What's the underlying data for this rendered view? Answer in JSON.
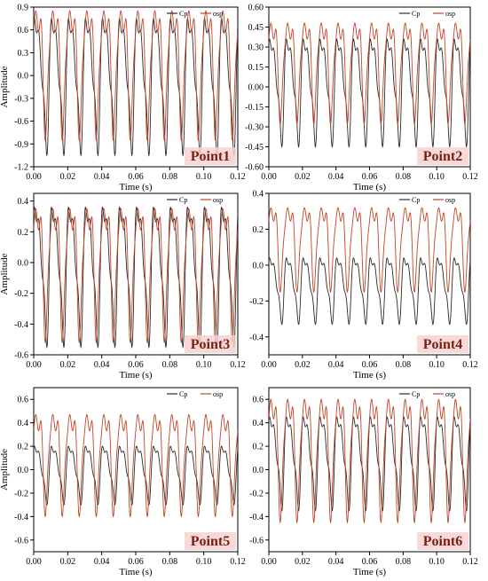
{
  "colors": {
    "cp": "#2b2b2b",
    "osp": "#c2452a",
    "point_label": "#7a1f10",
    "point_bg": "#f6d2d2"
  },
  "chart_data": [
    {
      "type": "line",
      "point_label": "Point1",
      "xlabel": "Time (s)",
      "ylabel": "Amplitude",
      "xlim": [
        0,
        0.12
      ],
      "ylim": [
        -1.2,
        0.9
      ],
      "xticks": [
        "0.00",
        "0.02",
        "0.04",
        "0.06",
        "0.08",
        "0.10",
        "0.12"
      ],
      "yticks": [
        "0.9",
        "0.6",
        "0.3",
        "0.0",
        "-0.3",
        "-0.6",
        "-0.9",
        "-1.2"
      ],
      "legend": [
        "Cp",
        "osp"
      ],
      "legend_position": "top-right",
      "period_s": 0.01,
      "cycles": 12,
      "series": [
        {
          "name": "Cp",
          "color": "#2b2b2b",
          "min": -1.05,
          "max": 0.75,
          "baseline": -0.1
        },
        {
          "name": "osp",
          "color": "#c2452a",
          "min": -0.85,
          "max": 0.85,
          "baseline": -0.55
        }
      ]
    },
    {
      "type": "line",
      "point_label": "Point2",
      "xlabel": "Time (s)",
      "ylabel": "",
      "xlim": [
        0,
        0.12
      ],
      "ylim": [
        -0.6,
        0.6
      ],
      "xticks": [
        "0.00",
        "0.02",
        "0.04",
        "0.06",
        "0.08",
        "0.10",
        "0.12"
      ],
      "yticks": [
        "0.60",
        "0.45",
        "0.30",
        "0.15",
        "0.00",
        "-0.15",
        "-0.30",
        "-0.45",
        "-0.60"
      ],
      "legend": [
        "Cp",
        "osp"
      ],
      "legend_position": "top-right",
      "period_s": 0.01,
      "cycles": 12,
      "series": [
        {
          "name": "Cp",
          "color": "#2b2b2b",
          "min": -0.45,
          "max": 0.36,
          "baseline": -0.07
        },
        {
          "name": "osp",
          "color": "#c2452a",
          "min": -0.28,
          "max": 0.48,
          "baseline": -0.05
        }
      ]
    },
    {
      "type": "line",
      "point_label": "Point3",
      "xlabel": "Time (s)",
      "ylabel": "Amplitude",
      "xlim": [
        0,
        0.12
      ],
      "ylim": [
        -0.6,
        0.45
      ],
      "xticks": [
        "0.00",
        "0.02",
        "0.04",
        "0.06",
        "0.08",
        "0.10",
        "0.12"
      ],
      "yticks": [
        "0.4",
        "0.2",
        "0.0",
        "-0.2",
        "-0.4",
        "-0.6"
      ],
      "legend": [
        "Cp",
        "osp"
      ],
      "legend_position": "top-right",
      "period_s": 0.01,
      "cycles": 12,
      "series": [
        {
          "name": "Cp",
          "color": "#2b2b2b",
          "min": -0.55,
          "max": 0.36,
          "baseline": -0.2
        },
        {
          "name": "osp",
          "color": "#c2452a",
          "min": -0.52,
          "max": 0.35,
          "baseline": -0.15
        }
      ]
    },
    {
      "type": "line",
      "point_label": "Point4",
      "xlabel": "Time (s)",
      "ylabel": "",
      "xlim": [
        0,
        0.12
      ],
      "ylim": [
        -0.5,
        0.4
      ],
      "xticks": [
        "0.00",
        "0.02",
        "0.04",
        "0.06",
        "0.08",
        "0.10",
        "0.12"
      ],
      "yticks": [
        "0.4",
        "0.2",
        "0.0",
        "-0.2",
        "-0.4"
      ],
      "legend": [
        "Cp",
        "osp"
      ],
      "legend_position": "top-right",
      "period_s": 0.01,
      "cycles": 12,
      "series": [
        {
          "name": "Cp",
          "color": "#2b2b2b",
          "min": -0.33,
          "max": 0.04,
          "baseline": -0.05
        },
        {
          "name": "osp",
          "color": "#c2452a",
          "min": -0.15,
          "max": 0.32,
          "baseline": -0.08
        }
      ]
    },
    {
      "type": "line",
      "point_label": "Point5",
      "xlabel": "Time (s)",
      "ylabel": "Amplitude",
      "xlim": [
        0,
        0.12
      ],
      "ylim": [
        -0.7,
        0.7
      ],
      "xticks": [
        "0.00",
        "0.02",
        "0.04",
        "0.06",
        "0.08",
        "0.10",
        "0.12"
      ],
      "yticks": [
        "0.6",
        "0.4",
        "0.2",
        "0.0",
        "-0.2",
        "-0.4",
        "-0.6"
      ],
      "legend": [
        "Cp",
        "osp"
      ],
      "legend_position": "top-right",
      "period_s": 0.01,
      "cycles": 12,
      "series": [
        {
          "name": "Cp",
          "color": "#2b2b2b",
          "min": -0.3,
          "max": 0.2,
          "baseline": 0.1
        },
        {
          "name": "osp",
          "color": "#c2452a",
          "min": -0.4,
          "max": 0.47,
          "baseline": -0.35
        }
      ]
    },
    {
      "type": "line",
      "point_label": "Point6",
      "xlabel": "Time (s)",
      "ylabel": "",
      "xlim": [
        0,
        0.12
      ],
      "ylim": [
        -0.7,
        0.7
      ],
      "xticks": [
        "0.00",
        "0.02",
        "0.04",
        "0.06",
        "0.08",
        "0.10",
        "0.12"
      ],
      "yticks": [
        "0.6",
        "0.4",
        "0.2",
        "0.0",
        "-0.2",
        "-0.4",
        "-0.6"
      ],
      "legend": [
        "Cp",
        "osp"
      ],
      "legend_position": "top-right",
      "period_s": 0.01,
      "cycles": 12,
      "series": [
        {
          "name": "Cp",
          "color": "#2b2b2b",
          "min": -0.35,
          "max": 0.45,
          "baseline": 0.35
        },
        {
          "name": "osp",
          "color": "#c2452a",
          "min": -0.45,
          "max": 0.6,
          "baseline": -0.38
        }
      ]
    }
  ]
}
